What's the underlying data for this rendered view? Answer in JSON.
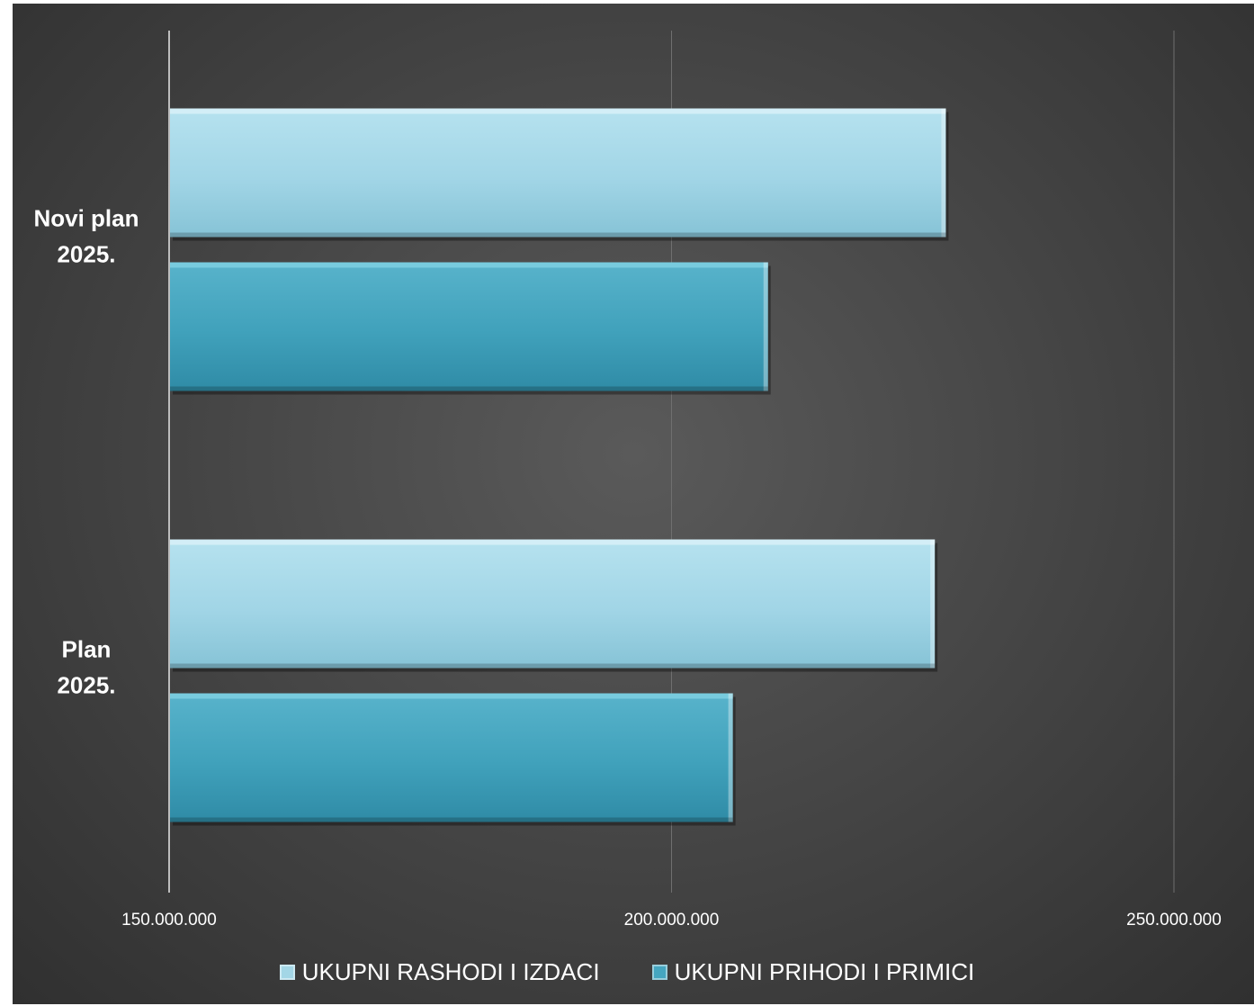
{
  "chart_data": {
    "type": "bar",
    "orientation": "horizontal",
    "categories": [
      "Novi plan 2025.",
      "Plan 2025."
    ],
    "category_lines": [
      [
        "Novi plan",
        "2025."
      ],
      [
        "Plan",
        "2025."
      ]
    ],
    "series": [
      {
        "name": "UKUPNI RASHODI I IZDACI",
        "color": "#a3d6e6",
        "values": [
          227300000,
          226200000
        ]
      },
      {
        "name": "UKUPNI PRIHODI I PRIMICI",
        "color": "#45a6c0",
        "values": [
          209600000,
          206100000
        ]
      }
    ],
    "xlim": [
      150000000,
      250000000
    ],
    "xticks": [
      150000000,
      200000000,
      250000000
    ],
    "xtick_labels": [
      "150.000.000",
      "200.000.000",
      "250.000.000"
    ],
    "grid": true,
    "legend_position": "bottom",
    "title": "",
    "xlabel": "",
    "ylabel": ""
  }
}
